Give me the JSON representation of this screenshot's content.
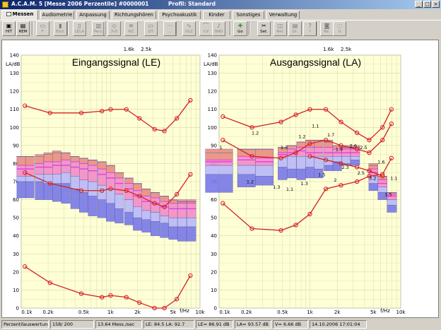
{
  "window": {
    "title": "A.C.A.M. 5 [Messe 2006 Perzentile] #0000001",
    "profile": "Profil: Standard",
    "buttons": [
      "_",
      "□",
      "×"
    ]
  },
  "tabs": [
    {
      "label": "Messen",
      "active": true,
      "icon": "measure-icon"
    },
    {
      "label": "Audiometrie"
    },
    {
      "label": "Anpassung"
    },
    {
      "label": "Richtungshören"
    },
    {
      "label": "Psychoakustik"
    },
    {
      "label": "Kinder"
    },
    {
      "label": "Sonstiges"
    },
    {
      "label": "Verwaltung"
    }
  ],
  "toolbar": [
    {
      "label": "HIT",
      "icon": "hit-icon",
      "enabled": true
    },
    {
      "label": "REM",
      "icon": "rem-icon",
      "enabled": true
    },
    {
      "label": "F",
      "icon": "f-icon",
      "enabled": false
    },
    {
      "label": "Einz.",
      "icon": "single-icon",
      "enabled": false
    },
    {
      "label": "LELA",
      "icon": "lela-icon",
      "enabled": false
    },
    {
      "label": "Perz.",
      "icon": "percentile-icon",
      "enabled": false
    },
    {
      "label": "3-D",
      "icon": "3d-icon",
      "enabled": false
    },
    {
      "label": "RZ",
      "icon": "rz-icon",
      "enabled": false
    },
    {
      "label": "DT",
      "icon": "dt-icon",
      "enabled": false
    },
    {
      "label": "...",
      "icon": "dots-icon",
      "enabled": false
    },
    {
      "label": "DLZ",
      "icon": "dlz-icon",
      "enabled": false
    },
    {
      "label": "CV",
      "icon": "cv-icon",
      "enabled": false
    },
    {
      "label": "SND",
      "icon": "snd-icon",
      "enabled": false
    },
    {
      "label": "Go",
      "icon": "go-icon",
      "enabled": true
    },
    {
      "label": "Set.",
      "icon": "settings-icon",
      "enabled": true
    },
    {
      "label": "Ref.",
      "icon": "ref-icon",
      "enabled": false
    },
    {
      "label": "Dr.",
      "icon": "print-icon",
      "enabled": false
    },
    {
      "label": "?",
      "icon": "help-icon",
      "enabled": false
    },
    {
      "label": "Re.",
      "icon": "re-icon",
      "enabled": false
    },
    {
      "label": "U",
      "icon": "u-icon",
      "enabled": false
    }
  ],
  "chart_data": [
    {
      "type": "percentile-box",
      "title": "Eingangssignal (LE)",
      "ylabel": "LA/dB",
      "xlabel": "f/Hz",
      "ylim": [
        0,
        140
      ],
      "xlim_hz": [
        100,
        10000
      ],
      "log_x": true,
      "yticks": [
        "0",
        "10",
        "20",
        "30",
        "40",
        "50",
        "60",
        "70",
        "80",
        "90",
        "100",
        "110",
        "120",
        "130",
        "140"
      ],
      "xticks": [
        {
          "hz": 100,
          "label": "0.1k"
        },
        {
          "hz": 200,
          "label": "0.2k"
        },
        {
          "hz": 500,
          "label": "0.5k"
        },
        {
          "hz": 1000,
          "label": "1k"
        },
        {
          "hz": 2000,
          "label": "2k"
        },
        {
          "hz": 5000,
          "label": "5k"
        },
        {
          "hz": 10000,
          "label": "10k"
        }
      ],
      "top_markers": [
        {
          "hz": 1600,
          "label": "1.6k"
        },
        {
          "hz": 2500,
          "label": "2.5k"
        }
      ],
      "bands_hz": [
        100,
        125,
        160,
        200,
        250,
        315,
        400,
        500,
        630,
        800,
        1000,
        1250,
        1600,
        2000,
        2500,
        3150,
        4000,
        5000,
        6300,
        8000
      ],
      "percentiles": {
        "p1": [
          61,
          61,
          60,
          60,
          59,
          58,
          55,
          53,
          51,
          50,
          48,
          47,
          46,
          43,
          42,
          40,
          39,
          38,
          37,
          37
        ],
        "p10": [
          70,
          70,
          70,
          69,
          69,
          69,
          66,
          64,
          62,
          60,
          58,
          55,
          53,
          50,
          49,
          48,
          47,
          45,
          45,
          45
        ],
        "p30": [
          73,
          73,
          74,
          74,
          74,
          75,
          73,
          71,
          70,
          68,
          66,
          63,
          60,
          56,
          54,
          53,
          51,
          50,
          50,
          50
        ],
        "p50": [
          77,
          77,
          78,
          78,
          79,
          79,
          78,
          77,
          76,
          74,
          72,
          69,
          66,
          62,
          59,
          58,
          56,
          55,
          55,
          55
        ],
        "p65": [
          79,
          79,
          80,
          81,
          81,
          82,
          81,
          80,
          79,
          77,
          75,
          72,
          69,
          65,
          62,
          61,
          59,
          58,
          58,
          58
        ],
        "p90": [
          84,
          84,
          84,
          85,
          86,
          86,
          84,
          83,
          82,
          81,
          79,
          75,
          72,
          69,
          66,
          64,
          62,
          60,
          60,
          60
        ],
        "p99": [
          84,
          84,
          85,
          86,
          87,
          86,
          84,
          83,
          82,
          81,
          79,
          75,
          72,
          69,
          66,
          64,
          62,
          60,
          59,
          59
        ]
      },
      "lines": [
        {
          "name": "upper",
          "hz": [
            110,
            210,
            470,
            800,
            1000,
            1500,
            2100,
            3100,
            4000,
            5500,
            7800
          ],
          "db": [
            112,
            108,
            108,
            109,
            110,
            110,
            105,
            99,
            98,
            105,
            115
          ]
        },
        {
          "name": "middle",
          "hz": [
            110,
            210,
            470,
            800,
            1000,
            1500,
            2100,
            3100,
            4000,
            5500,
            7800
          ],
          "db": [
            75,
            69,
            65,
            65,
            66,
            65,
            62,
            58,
            56,
            63,
            74
          ]
        },
        {
          "name": "lower",
          "hz": [
            110,
            210,
            470,
            800,
            1000,
            1500,
            2100,
            3100,
            4000,
            5500,
            7800
          ],
          "db": [
            23,
            14,
            8,
            6,
            7,
            6,
            3,
            0,
            0,
            5,
            18
          ]
        }
      ],
      "labels": []
    },
    {
      "type": "percentile-box",
      "title": "Ausgangssignal (LA)",
      "ylabel": "LA/dB",
      "xlabel": "f/Hz",
      "ylim": [
        0,
        140
      ],
      "xlim_hz": [
        100,
        10000
      ],
      "log_x": true,
      "yticks": [
        "0",
        "10",
        "20",
        "30",
        "40",
        "50",
        "60",
        "70",
        "80",
        "90",
        "100",
        "110",
        "120",
        "130",
        "140"
      ],
      "xticks": [
        {
          "hz": 100,
          "label": "0.1k"
        },
        {
          "hz": 200,
          "label": "0.2k"
        },
        {
          "hz": 500,
          "label": "0.5k"
        },
        {
          "hz": 1000,
          "label": "1k"
        },
        {
          "hz": 2000,
          "label": "2k"
        },
        {
          "hz": 5000,
          "label": "5k"
        },
        {
          "hz": 10000,
          "label": "10k"
        }
      ],
      "top_markers": [
        {
          "hz": 1600,
          "label": "1.6k"
        },
        {
          "hz": 2500,
          "label": "2.5k"
        }
      ],
      "bands_hz": [
        100,
        200,
        315,
        500,
        630,
        800,
        1000,
        1250,
        1600,
        2000,
        2500,
        3150,
        5000,
        6300,
        8000
      ],
      "percentiles": {
        "p1": [
          64,
          67,
          68,
          71,
          72,
          71,
          72,
          72,
          76,
          76,
          79,
          79,
          65,
          60,
          53
        ],
        "p10": [
          74,
          74,
          73,
          78,
          77,
          77,
          78,
          77,
          79,
          81,
          80,
          82,
          69,
          64,
          57
        ],
        "p30": [
          79,
          79,
          79,
          83,
          84,
          84,
          84,
          84,
          84,
          84,
          84,
          84,
          73,
          67,
          60
        ],
        "p50": [
          81,
          82,
          81,
          85,
          86,
          87,
          86,
          86,
          86,
          86,
          86,
          86,
          75,
          69,
          62
        ],
        "p65": [
          82,
          84,
          83,
          86,
          88,
          89,
          89,
          89,
          89,
          88,
          88,
          88,
          77,
          71,
          63
        ],
        "p90": [
          86,
          88,
          88,
          89,
          90,
          92,
          93,
          93,
          93,
          90,
          90,
          90,
          79,
          73,
          64
        ],
        "p99": [
          88,
          88,
          88,
          89,
          90,
          92,
          93,
          93,
          92,
          90,
          89,
          89,
          80,
          73,
          64
        ]
      },
      "lines": [
        {
          "name": "upper",
          "hz": [
            110,
            230,
            480,
            700,
            1000,
            1500,
            2200,
            3300,
            4500,
            6300,
            7900
          ],
          "db": [
            106,
            100,
            103,
            107,
            110,
            110,
            103,
            97,
            93,
            100,
            110
          ]
        },
        {
          "name": "mid-upper",
          "hz": [
            110,
            230,
            480,
            700,
            1000,
            1500,
            2200,
            3300,
            4500,
            6300,
            7900
          ],
          "db": [
            93,
            84,
            83,
            86,
            91,
            93,
            90,
            88,
            86,
            93,
            102
          ]
        },
        {
          "name": "mid-lower",
          "hz": [
            110,
            230,
            480,
            700,
            1000,
            1500,
            2200,
            3300,
            4500,
            6300,
            7900
          ],
          "db": [
            58,
            44,
            43,
            46,
            52,
            66,
            68,
            70,
            73,
            74,
            83
          ]
        },
        {
          "name": "diagonal",
          "hz": [
            1000,
            1500,
            2200,
            3300,
            4500,
            6300
          ],
          "db": [
            84,
            82,
            80,
            78,
            76,
            73
          ]
        }
      ],
      "labels": [
        {
          "text": "1",
          "hz": 105,
          "db": 88
        },
        {
          "text": "1.2",
          "hz": 250,
          "db": 96
        },
        {
          "text": "1.3",
          "hz": 520,
          "db": 88
        },
        {
          "text": "1.2",
          "hz": 820,
          "db": 94
        },
        {
          "text": "1.1",
          "hz": 1150,
          "db": 100
        },
        {
          "text": "1.7",
          "hz": 1700,
          "db": 95
        },
        {
          "text": "1.9",
          "hz": 2100,
          "db": 87
        },
        {
          "text": "2.6",
          "hz": 3000,
          "db": 89
        },
        {
          "text": "2.5",
          "hz": 3900,
          "db": 88
        },
        {
          "text": "1.6",
          "hz": 6100,
          "db": 80
        },
        {
          "text": "1.1",
          "hz": 8400,
          "db": 71
        },
        {
          "text": "1.2",
          "hz": 220,
          "db": 69
        },
        {
          "text": "1.3",
          "hz": 430,
          "db": 66
        },
        {
          "text": "1.1",
          "hz": 600,
          "db": 65
        },
        {
          "text": "1.3",
          "hz": 870,
          "db": 68
        },
        {
          "text": "1.5",
          "hz": 1350,
          "db": 73
        },
        {
          "text": "2",
          "hz": 1900,
          "db": 70
        },
        {
          "text": "2.3",
          "hz": 2450,
          "db": 77
        },
        {
          "text": "2.5",
          "hz": 3650,
          "db": 74
        },
        {
          "text": "3.2",
          "hz": 4900,
          "db": 71
        },
        {
          "text": "1.5",
          "hz": 7300,
          "db": 62
        }
      ]
    }
  ],
  "colors": {
    "plot_bg": "#ffffd6",
    "grid": "#d8d8a8",
    "box_red": "#e98d80",
    "box_pink": "#f28cc8",
    "box_magenta": "#e040e0",
    "box_lightblue": "#b8b8f8",
    "box_blue": "#7878e8",
    "line": "#d42020"
  },
  "status": [
    "Perzentilauswertung",
    "158/ 200",
    "13.64 Mess./sec",
    "LE: 84.5  LA: 92.7",
    "LE= 86.91 dB",
    "LA= 93.57 dB",
    "V= 6.66 dB",
    "14.10.2006 17:01:04"
  ]
}
